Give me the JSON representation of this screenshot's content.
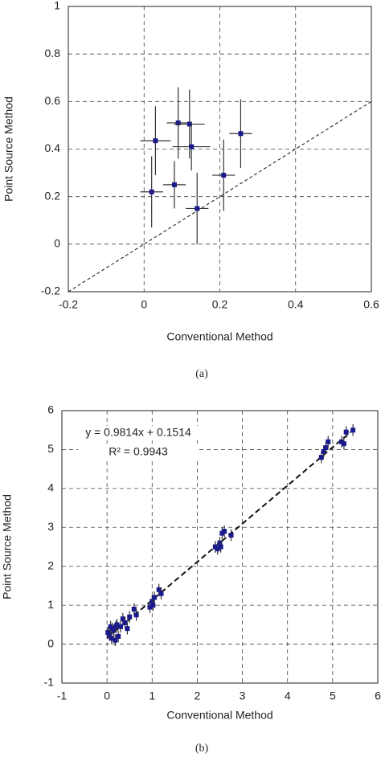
{
  "chart_data": [
    {
      "type": "scatter",
      "x_label": "Conventional Method",
      "y_label": "Point Source Method",
      "caption": "(a)",
      "xlim": [
        -0.2,
        0.6
      ],
      "ylim": [
        -0.2,
        1
      ],
      "xticks": [
        -0.2,
        0,
        0.2,
        0.4,
        0.6
      ],
      "yticks": [
        -0.2,
        0,
        0.2,
        0.4,
        0.6,
        0.8,
        1
      ],
      "grid": true,
      "color": "#1a1a8c",
      "x": [
        0.02,
        0.03,
        0.08,
        0.09,
        0.12,
        0.125,
        0.14,
        0.21,
        0.255
      ],
      "values": [
        0.22,
        0.435,
        0.25,
        0.51,
        0.505,
        0.41,
        0.15,
        0.29,
        0.465
      ],
      "xerr": [
        0.03,
        0.04,
        0.03,
        0.03,
        0.04,
        0.05,
        0.03,
        0.03,
        0.03
      ],
      "yerr": [
        0.15,
        0.145,
        0.1,
        0.15,
        0.145,
        0.1,
        0.15,
        0.15,
        0.145
      ],
      "line": {
        "x": [
          -0.2,
          0.6
        ],
        "y": [
          -0.2,
          0.6
        ]
      }
    },
    {
      "type": "scatter",
      "x_label": "Conventional Method",
      "y_label": "Point Source Method",
      "caption": "(b)",
      "annotations": [
        "y = 0.9814x + 0.1514",
        "R² = 0.9943"
      ],
      "xlim": [
        -1,
        6
      ],
      "ylim": [
        -1,
        6
      ],
      "xticks": [
        -1,
        0,
        1,
        2,
        3,
        4,
        5,
        6
      ],
      "yticks": [
        -1,
        0,
        1,
        2,
        3,
        4,
        5,
        6
      ],
      "grid": true,
      "color": "#1a1a8c",
      "x": [
        0.02,
        0.05,
        0.08,
        0.1,
        0.12,
        0.15,
        0.18,
        0.2,
        0.22,
        0.25,
        0.3,
        0.35,
        0.4,
        0.45,
        0.5,
        0.6,
        0.65,
        0.95,
        1.0,
        1.02,
        1.05,
        1.15,
        1.2,
        2.4,
        2.45,
        2.5,
        2.52,
        2.55,
        2.6,
        2.75,
        4.75,
        4.8,
        4.85,
        4.9,
        5.2,
        5.25,
        5.3,
        5.45
      ],
      "values": [
        0.3,
        0.25,
        0.45,
        0.15,
        0.4,
        0.35,
        0.1,
        0.45,
        0.5,
        0.2,
        0.45,
        0.65,
        0.55,
        0.4,
        0.7,
        0.9,
        0.75,
        0.95,
        1.1,
        1.0,
        1.2,
        1.4,
        1.3,
        2.5,
        2.45,
        2.6,
        2.5,
        2.85,
        2.9,
        2.8,
        4.8,
        4.95,
        5.05,
        5.2,
        5.2,
        5.15,
        5.45,
        5.5
      ],
      "xerr": [
        0.05,
        0.05,
        0.05,
        0.05,
        0.05,
        0.05,
        0.05,
        0.05,
        0.05,
        0.05,
        0.05,
        0.05,
        0.05,
        0.05,
        0.05,
        0.05,
        0.05,
        0.05,
        0.05,
        0.05,
        0.05,
        0.05,
        0.05,
        0.05,
        0.05,
        0.05,
        0.05,
        0.05,
        0.05,
        0.05,
        0.05,
        0.05,
        0.05,
        0.05,
        0.05,
        0.05,
        0.05,
        0.05
      ],
      "yerr": [
        0.15,
        0.15,
        0.15,
        0.15,
        0.15,
        0.15,
        0.15,
        0.15,
        0.15,
        0.15,
        0.15,
        0.15,
        0.15,
        0.15,
        0.15,
        0.15,
        0.15,
        0.15,
        0.15,
        0.15,
        0.15,
        0.15,
        0.15,
        0.15,
        0.15,
        0.15,
        0.15,
        0.15,
        0.15,
        0.15,
        0.15,
        0.15,
        0.15,
        0.15,
        0.15,
        0.15,
        0.15,
        0.15
      ],
      "line": {
        "x": [
          0,
          5.4
        ],
        "y": [
          0.1514,
          5.451
        ]
      }
    }
  ]
}
